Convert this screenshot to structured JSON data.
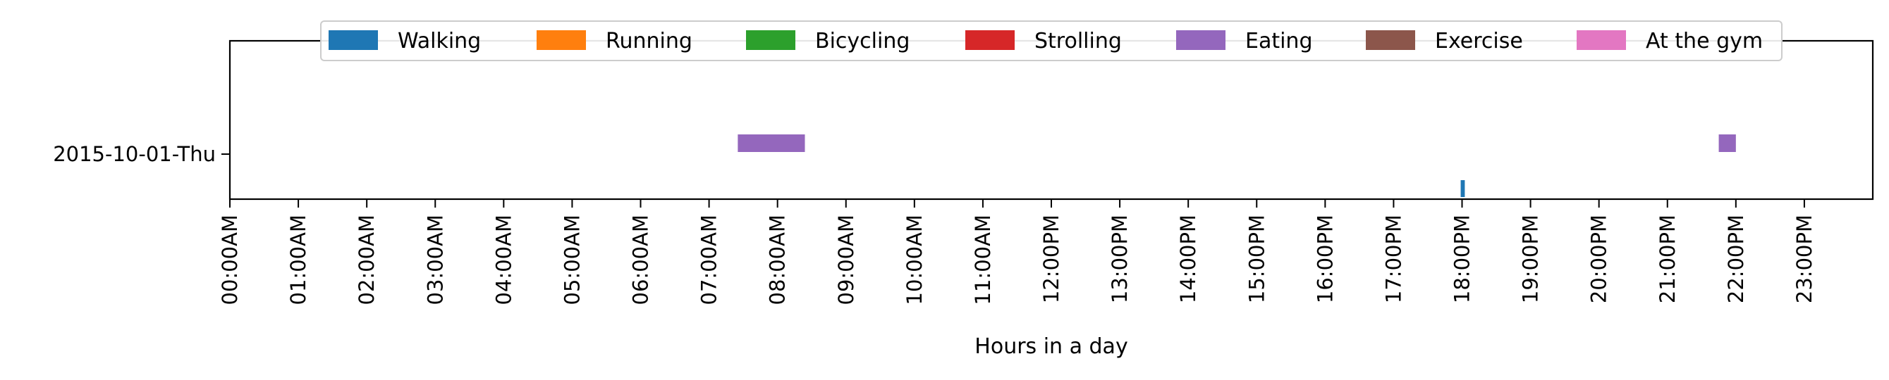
{
  "chart_data": {
    "type": "broken-bar-timeline",
    "xlabel": "Hours in a day",
    "ylabel": "",
    "xlim": [
      0,
      24
    ],
    "x_ticks": [
      "00:00AM",
      "01:00AM",
      "02:00AM",
      "03:00AM",
      "04:00AM",
      "05:00AM",
      "06:00AM",
      "07:00AM",
      "08:00AM",
      "09:00AM",
      "10:00AM",
      "11:00AM",
      "12:00PM",
      "13:00PM",
      "14:00PM",
      "15:00PM",
      "16:00PM",
      "17:00PM",
      "18:00PM",
      "19:00PM",
      "20:00PM",
      "21:00PM",
      "22:00PM",
      "23:00PM"
    ],
    "rows": [
      "2015-10-01-Thu"
    ],
    "legend_position": "top-center",
    "grid": false,
    "series": [
      {
        "name": "Walking",
        "color": "#1f77b4",
        "segments": [
          {
            "start_hour": 17.98,
            "end_hour": 18.04
          }
        ]
      },
      {
        "name": "Running",
        "color": "#ff7f0e",
        "segments": []
      },
      {
        "name": "Bicycling",
        "color": "#2ca02c",
        "segments": []
      },
      {
        "name": "Strolling",
        "color": "#d62728",
        "segments": []
      },
      {
        "name": "Eating",
        "color": "#9467bd",
        "segments": [
          {
            "start_hour": 7.42,
            "end_hour": 8.4
          },
          {
            "start_hour": 21.75,
            "end_hour": 22.0
          }
        ]
      },
      {
        "name": "Exercise",
        "color": "#8c564b",
        "segments": []
      },
      {
        "name": "At the gym",
        "color": "#e377c2",
        "segments": []
      }
    ]
  }
}
